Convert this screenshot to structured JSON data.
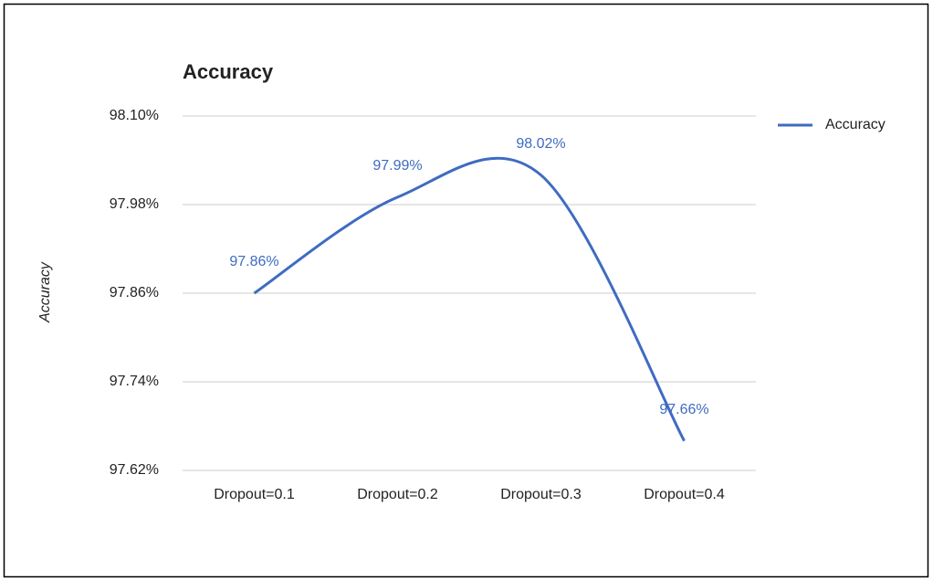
{
  "chart_data": {
    "type": "line",
    "title": "Accuracy",
    "y_label": "Accuracy",
    "categories": [
      "Dropout=0.1",
      "Dropout=0.2",
      "Dropout=0.3",
      "Dropout=0.4"
    ],
    "series": [
      {
        "name": "Accuracy",
        "color": "#3f6bc2",
        "values": [
          97.86,
          97.99,
          98.02,
          97.66
        ],
        "value_labels": [
          "97.86%",
          "97.99%",
          "98.02%",
          "97.66%"
        ]
      }
    ],
    "ylim": [
      97.62,
      98.1
    ],
    "yticks": [
      {
        "value": 97.62,
        "label": "97.62%"
      },
      {
        "value": 97.74,
        "label": "97.74%"
      },
      {
        "value": 97.86,
        "label": "97.86%"
      },
      {
        "value": 97.98,
        "label": "97.98%"
      },
      {
        "value": 98.1,
        "label": "98.10%"
      }
    ],
    "grid": true,
    "legend": "right",
    "smooth": true
  }
}
